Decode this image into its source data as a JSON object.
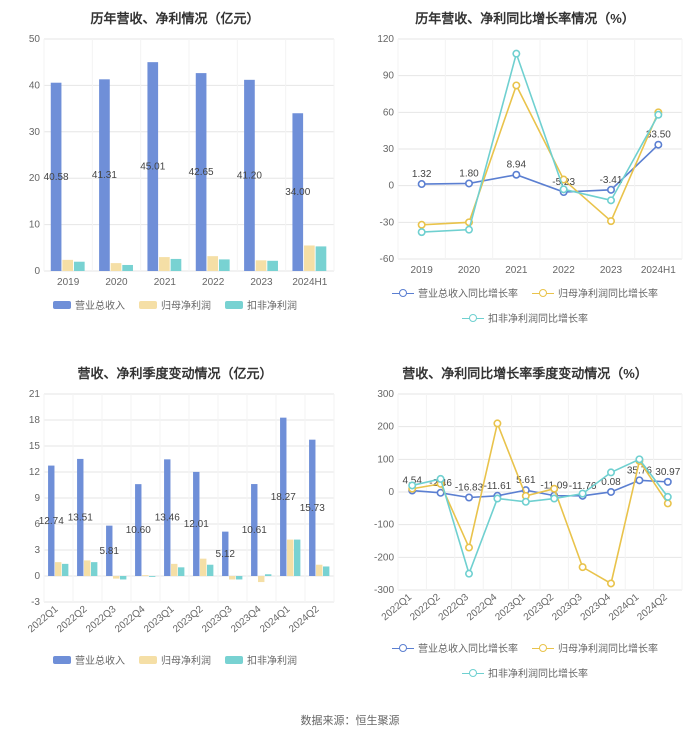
{
  "footer": "数据来源：恒生聚源",
  "colors": {
    "grid": "#e6e6e6",
    "axis_text": "#666666",
    "series_blue": "#6f8fd8",
    "series_cream": "#f5dfa6",
    "series_teal": "#78d2d2",
    "line_blue": "#5b7fd1",
    "line_yellow": "#e9c34b",
    "line_teal": "#6fd0d0",
    "bg": "#ffffff"
  },
  "chart1": {
    "title": "历年营收、净利情况（亿元）",
    "type": "bar",
    "categories": [
      "2019",
      "2020",
      "2021",
      "2022",
      "2023",
      "2024H1"
    ],
    "series": [
      {
        "name": "营业总收入",
        "color": "#6f8fd8",
        "values": [
          40.58,
          41.31,
          45.01,
          42.65,
          41.2,
          34.0
        ]
      },
      {
        "name": "归母净利润",
        "color": "#f5dfa6",
        "values": [
          2.4,
          1.7,
          3.0,
          3.2,
          2.3,
          5.5
        ]
      },
      {
        "name": "扣非净利润",
        "color": "#78d2d2",
        "values": [
          2.0,
          1.3,
          2.6,
          2.5,
          2.2,
          5.3
        ]
      }
    ],
    "ylim": [
      0,
      50
    ],
    "ystep": 10,
    "show_values_on": 0,
    "legend": [
      "营业总收入",
      "归母净利润",
      "扣非净利润"
    ]
  },
  "chart2": {
    "title": "历年营收、净利同比增长率情况（%）",
    "type": "line",
    "categories": [
      "2019",
      "2020",
      "2021",
      "2022",
      "2023",
      "2024H1"
    ],
    "series": [
      {
        "name": "营业总收入同比增长率",
        "color": "#5b7fd1",
        "values": [
          1.32,
          1.8,
          8.94,
          -5.23,
          -3.41,
          33.5
        ],
        "show_values": true
      },
      {
        "name": "归母净利润同比增长率",
        "color": "#e9c34b",
        "values": [
          -32,
          -30,
          82,
          5,
          -29,
          60
        ],
        "show_values": false
      },
      {
        "name": "扣非净利润同比增长率",
        "color": "#6fd0d0",
        "values": [
          -38,
          -36,
          108,
          -3,
          -12,
          58
        ],
        "show_values": false
      }
    ],
    "ylim": [
      -60,
      120
    ],
    "ystep": 30,
    "legend": [
      "营业总收入同比增长率",
      "归母净利润同比增长率",
      "扣非净利润同比增长率"
    ]
  },
  "chart3": {
    "title": "营收、净利季度变动情况（亿元）",
    "type": "bar",
    "categories": [
      "2022Q1",
      "2022Q2",
      "2022Q3",
      "2022Q4",
      "2023Q1",
      "2023Q2",
      "2023Q3",
      "2023Q4",
      "2024Q1",
      "2024Q2"
    ],
    "series": [
      {
        "name": "营业总收入",
        "color": "#6f8fd8",
        "values": [
          12.74,
          13.51,
          5.81,
          10.6,
          13.46,
          12.01,
          5.12,
          10.61,
          18.27,
          15.73
        ]
      },
      {
        "name": "归母净利润",
        "color": "#f5dfa6",
        "values": [
          1.6,
          1.8,
          -0.3,
          0.1,
          1.4,
          2.0,
          -0.4,
          -0.7,
          4.2,
          1.3
        ]
      },
      {
        "name": "扣非净利润",
        "color": "#78d2d2",
        "values": [
          1.4,
          1.6,
          -0.4,
          -0.1,
          1.0,
          1.3,
          -0.4,
          0.2,
          4.2,
          1.1
        ]
      }
    ],
    "ylim": [
      -3,
      21
    ],
    "ystep": 3,
    "show_values_on": 0,
    "rotate_x": true,
    "legend": [
      "营业总收入",
      "归母净利润",
      "扣非净利润"
    ]
  },
  "chart4": {
    "title": "营收、净利同比增长率季度变动情况（%）",
    "type": "line",
    "categories": [
      "2022Q1",
      "2022Q2",
      "2022Q3",
      "2022Q4",
      "2023Q1",
      "2023Q2",
      "2023Q3",
      "2023Q4",
      "2024Q1",
      "2024Q2"
    ],
    "series": [
      {
        "name": "营业总收入同比增长率",
        "color": "#5b7fd1",
        "values": [
          4.54,
          -2.46,
          -16.83,
          -11.61,
          5.61,
          -11.09,
          -11.76,
          0.08,
          35.76,
          30.97
        ],
        "show_values": true
      },
      {
        "name": "归母净利润同比增长率",
        "color": "#e9c34b",
        "values": [
          10,
          25,
          -170,
          210,
          -12,
          10,
          -230,
          -280,
          95,
          -35
        ],
        "show_values": false
      },
      {
        "name": "扣非净利润同比增长率",
        "color": "#6fd0d0",
        "values": [
          20,
          40,
          -250,
          -20,
          -30,
          -20,
          -5,
          60,
          100,
          -15
        ],
        "show_values": false
      }
    ],
    "ylim": [
      -300,
      300
    ],
    "ystep": 100,
    "rotate_x": true,
    "legend": [
      "营业总收入同比增长率",
      "归母净利润同比增长率",
      "扣非净利润同比增长率"
    ]
  }
}
